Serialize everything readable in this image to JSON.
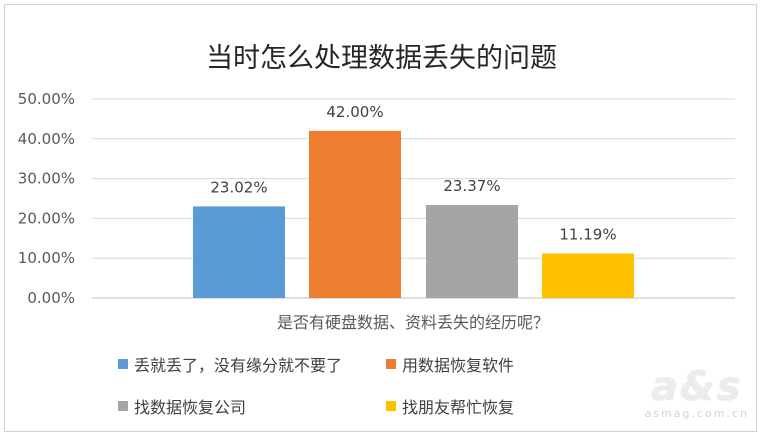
{
  "chart_data": {
    "type": "bar",
    "title": "当时怎么处理数据丢失的问题",
    "xlabel": "是否有硬盘数据、资料丢失的经历呢？",
    "ylabel": "",
    "ylim": [
      0,
      50
    ],
    "yticks": [
      "0.00%",
      "10.00%",
      "20.00%",
      "30.00%",
      "40.00%",
      "50.00%"
    ],
    "ytick_values": [
      0,
      10,
      20,
      30,
      40,
      50
    ],
    "grid": true,
    "legend_position": "bottom",
    "series": [
      {
        "name": "丢就丢了，没有缘分就不要了",
        "value": 23.02,
        "label": "23.02%",
        "color": "#5b9bd5"
      },
      {
        "name": "用数据恢复软件",
        "value": 42.0,
        "label": "42.00%",
        "color": "#ed7d31"
      },
      {
        "name": "找数据恢复公司",
        "value": 23.37,
        "label": "23.37%",
        "color": "#a5a5a5"
      },
      {
        "name": "找朋友帮忙恢复",
        "value": 11.19,
        "label": "11.19%",
        "color": "#ffc000"
      }
    ]
  },
  "watermark": {
    "logo": "a&s",
    "url": "asmag.com.cn"
  }
}
